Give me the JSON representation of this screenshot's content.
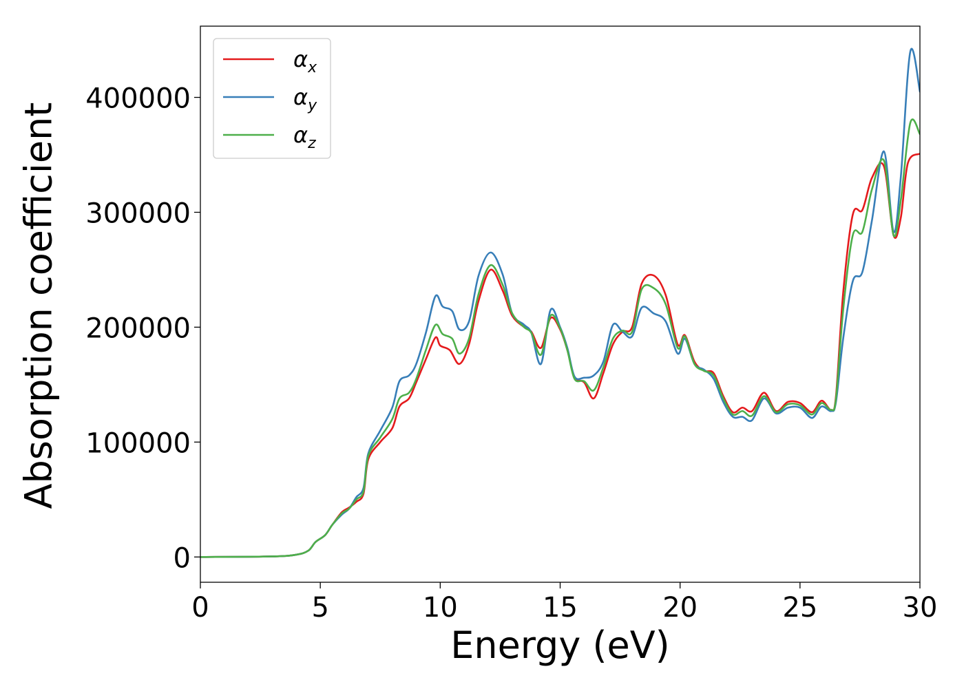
{
  "chart_data": {
    "type": "line",
    "title": "",
    "xlabel": "Energy (eV)",
    "ylabel": "Absorption coefficient",
    "xlim": [
      0,
      30
    ],
    "ylim": [
      -22000,
      462000
    ],
    "x_ticks": [
      0,
      5,
      10,
      15,
      20,
      25,
      30
    ],
    "y_ticks": [
      0,
      100000,
      200000,
      300000,
      400000
    ],
    "grid": false,
    "legend_position": "top-left",
    "series": [
      {
        "name": "αx",
        "legend_base": "α",
        "legend_sub": "x",
        "color": "#e41a1c",
        "points": [
          [
            0,
            0
          ],
          [
            3,
            500
          ],
          [
            4,
            2000
          ],
          [
            4.5,
            5500
          ],
          [
            4.8,
            13000
          ],
          [
            5.2,
            19000
          ],
          [
            5.5,
            28000
          ],
          [
            5.9,
            39000
          ],
          [
            6.2,
            43000
          ],
          [
            6.5,
            48000
          ],
          [
            6.8,
            55000
          ],
          [
            7.0,
            85000
          ],
          [
            7.5,
            100000
          ],
          [
            8.0,
            112000
          ],
          [
            8.3,
            131000
          ],
          [
            8.7,
            138000
          ],
          [
            9.0,
            152000
          ],
          [
            9.4,
            172000
          ],
          [
            9.8,
            191000
          ],
          [
            10.0,
            184000
          ],
          [
            10.4,
            180000
          ],
          [
            10.8,
            168000
          ],
          [
            11.2,
            185000
          ],
          [
            11.6,
            223000
          ],
          [
            12.1,
            250000
          ],
          [
            12.6,
            232000
          ],
          [
            13.0,
            210000
          ],
          [
            13.5,
            200000
          ],
          [
            13.8,
            196000
          ],
          [
            14.2,
            182000
          ],
          [
            14.6,
            208000
          ],
          [
            15.0,
            198000
          ],
          [
            15.3,
            180000
          ],
          [
            15.6,
            156000
          ],
          [
            16.0,
            152000
          ],
          [
            16.4,
            138000
          ],
          [
            16.8,
            160000
          ],
          [
            17.2,
            185000
          ],
          [
            17.6,
            196000
          ],
          [
            18.0,
            200000
          ],
          [
            18.4,
            238000
          ],
          [
            18.9,
            245000
          ],
          [
            19.4,
            228000
          ],
          [
            19.9,
            185000
          ],
          [
            20.2,
            193000
          ],
          [
            20.6,
            170000
          ],
          [
            21.0,
            162000
          ],
          [
            21.4,
            160000
          ],
          [
            21.8,
            140000
          ],
          [
            22.2,
            126000
          ],
          [
            22.6,
            130000
          ],
          [
            23.0,
            127000
          ],
          [
            23.5,
            143000
          ],
          [
            24.0,
            127000
          ],
          [
            24.5,
            135000
          ],
          [
            25.0,
            134000
          ],
          [
            25.5,
            126000
          ],
          [
            25.9,
            136000
          ],
          [
            26.3,
            128000
          ],
          [
            26.5,
            140000
          ],
          [
            26.8,
            230000
          ],
          [
            27.2,
            298000
          ],
          [
            27.6,
            302000
          ],
          [
            28.0,
            330000
          ],
          [
            28.5,
            340000
          ],
          [
            28.9,
            280000
          ],
          [
            29.2,
            295000
          ],
          [
            29.5,
            343000
          ],
          [
            30.0,
            351000
          ]
        ]
      },
      {
        "name": "αy",
        "legend_base": "α",
        "legend_sub": "y",
        "color": "#377eb8",
        "points": [
          [
            0,
            0
          ],
          [
            3,
            500
          ],
          [
            4,
            2000
          ],
          [
            4.5,
            5500
          ],
          [
            4.8,
            13000
          ],
          [
            5.2,
            19000
          ],
          [
            5.5,
            28000
          ],
          [
            5.9,
            37000
          ],
          [
            6.2,
            42000
          ],
          [
            6.5,
            52000
          ],
          [
            6.8,
            60000
          ],
          [
            7.0,
            90000
          ],
          [
            7.5,
            110000
          ],
          [
            8.0,
            130000
          ],
          [
            8.3,
            153000
          ],
          [
            8.7,
            158000
          ],
          [
            9.0,
            168000
          ],
          [
            9.4,
            195000
          ],
          [
            9.8,
            227000
          ],
          [
            10.1,
            218000
          ],
          [
            10.5,
            214000
          ],
          [
            10.8,
            198000
          ],
          [
            11.2,
            205000
          ],
          [
            11.6,
            245000
          ],
          [
            12.1,
            265000
          ],
          [
            12.6,
            246000
          ],
          [
            13.0,
            212000
          ],
          [
            13.5,
            202000
          ],
          [
            13.8,
            195000
          ],
          [
            14.2,
            168000
          ],
          [
            14.6,
            215000
          ],
          [
            15.0,
            200000
          ],
          [
            15.3,
            182000
          ],
          [
            15.6,
            157000
          ],
          [
            16.0,
            156000
          ],
          [
            16.4,
            158000
          ],
          [
            16.8,
            170000
          ],
          [
            17.2,
            202000
          ],
          [
            17.6,
            196000
          ],
          [
            18.0,
            192000
          ],
          [
            18.4,
            217000
          ],
          [
            18.9,
            212000
          ],
          [
            19.4,
            205000
          ],
          [
            19.9,
            177000
          ],
          [
            20.2,
            190000
          ],
          [
            20.6,
            168000
          ],
          [
            21.0,
            163000
          ],
          [
            21.4,
            155000
          ],
          [
            21.8,
            135000
          ],
          [
            22.2,
            122000
          ],
          [
            22.6,
            122000
          ],
          [
            23.0,
            119000
          ],
          [
            23.5,
            138000
          ],
          [
            24.0,
            125000
          ],
          [
            24.5,
            130000
          ],
          [
            25.0,
            130000
          ],
          [
            25.5,
            121000
          ],
          [
            25.9,
            131000
          ],
          [
            26.3,
            127000
          ],
          [
            26.5,
            135000
          ],
          [
            26.8,
            190000
          ],
          [
            27.2,
            240000
          ],
          [
            27.6,
            248000
          ],
          [
            28.0,
            293000
          ],
          [
            28.5,
            353000
          ],
          [
            28.9,
            283000
          ],
          [
            29.2,
            330000
          ],
          [
            29.6,
            440000
          ],
          [
            30.0,
            405000
          ]
        ]
      },
      {
        "name": "αz",
        "legend_base": "α",
        "legend_sub": "z",
        "color": "#4daf4a",
        "points": [
          [
            0,
            0
          ],
          [
            3,
            500
          ],
          [
            4,
            2000
          ],
          [
            4.5,
            5500
          ],
          [
            4.8,
            13000
          ],
          [
            5.2,
            19000
          ],
          [
            5.5,
            28000
          ],
          [
            5.9,
            38000
          ],
          [
            6.2,
            42000
          ],
          [
            6.5,
            50000
          ],
          [
            6.8,
            57000
          ],
          [
            7.0,
            88000
          ],
          [
            7.5,
            104000
          ],
          [
            8.0,
            120000
          ],
          [
            8.3,
            138000
          ],
          [
            8.7,
            143000
          ],
          [
            9.0,
            155000
          ],
          [
            9.4,
            180000
          ],
          [
            9.8,
            202000
          ],
          [
            10.1,
            194000
          ],
          [
            10.5,
            190000
          ],
          [
            10.8,
            177000
          ],
          [
            11.2,
            190000
          ],
          [
            11.6,
            229000
          ],
          [
            12.1,
            254000
          ],
          [
            12.6,
            237000
          ],
          [
            13.0,
            212000
          ],
          [
            13.5,
            200000
          ],
          [
            13.8,
            195000
          ],
          [
            14.2,
            176000
          ],
          [
            14.6,
            210000
          ],
          [
            15.0,
            199000
          ],
          [
            15.3,
            180000
          ],
          [
            15.6,
            155000
          ],
          [
            16.0,
            153000
          ],
          [
            16.4,
            145000
          ],
          [
            16.8,
            165000
          ],
          [
            17.2,
            190000
          ],
          [
            17.6,
            197000
          ],
          [
            18.0,
            196000
          ],
          [
            18.4,
            233000
          ],
          [
            18.9,
            234000
          ],
          [
            19.4,
            220000
          ],
          [
            19.9,
            182000
          ],
          [
            20.2,
            192000
          ],
          [
            20.6,
            168000
          ],
          [
            21.0,
            162000
          ],
          [
            21.4,
            158000
          ],
          [
            21.8,
            138000
          ],
          [
            22.2,
            124000
          ],
          [
            22.6,
            127000
          ],
          [
            23.0,
            123000
          ],
          [
            23.5,
            140000
          ],
          [
            24.0,
            126000
          ],
          [
            24.5,
            133000
          ],
          [
            25.0,
            132000
          ],
          [
            25.5,
            124000
          ],
          [
            25.9,
            134000
          ],
          [
            26.3,
            128000
          ],
          [
            26.5,
            138000
          ],
          [
            26.8,
            215000
          ],
          [
            27.2,
            280000
          ],
          [
            27.6,
            283000
          ],
          [
            28.0,
            320000
          ],
          [
            28.5,
            345000
          ],
          [
            28.9,
            280000
          ],
          [
            29.2,
            310000
          ],
          [
            29.6,
            378000
          ],
          [
            30.0,
            368000
          ]
        ]
      }
    ]
  }
}
